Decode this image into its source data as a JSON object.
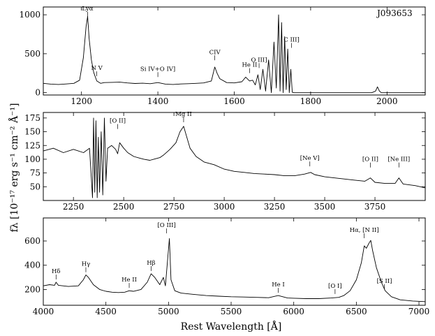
{
  "chart_data": {
    "type": "line",
    "object_name": "J093653",
    "xlabel": "Rest Wavelength [Å]",
    "ylabel": "fλ [10⁻¹⁷ erg s⁻¹ cm⁻² Å⁻¹]",
    "grid": false,
    "panels": [
      {
        "xlim": [
          1100,
          2100
        ],
        "ylim": [
          -30,
          1100
        ],
        "xticks": [
          1200,
          1400,
          1600,
          1800,
          2000
        ],
        "yticks": [
          0,
          500,
          1000
        ],
        "lines": [
          {
            "label": "Lyα",
            "x": 1216,
            "peak": 980
          },
          {
            "label": "N V",
            "x": 1240,
            "peak": 175
          },
          {
            "label": "Si IV+O IV]",
            "x": 1400,
            "peak": 165
          },
          {
            "label": "CIV",
            "x": 1549,
            "peak": 380
          },
          {
            "label": "He II",
            "x": 1640,
            "peak": 215
          },
          {
            "label": "O III]",
            "x": 1665,
            "peak": 280
          },
          {
            "label": "C III]",
            "x": 1750,
            "peak": 540
          }
        ],
        "spectrum": [
          [
            1100,
            120
          ],
          [
            1120,
            110
          ],
          [
            1140,
            105
          ],
          [
            1160,
            112
          ],
          [
            1180,
            120
          ],
          [
            1195,
            160
          ],
          [
            1205,
            450
          ],
          [
            1212,
            850
          ],
          [
            1216,
            980
          ],
          [
            1220,
            700
          ],
          [
            1226,
            420
          ],
          [
            1232,
            260
          ],
          [
            1240,
            150
          ],
          [
            1250,
            120
          ],
          [
            1260,
            130
          ],
          [
            1280,
            132
          ],
          [
            1300,
            135
          ],
          [
            1320,
            125
          ],
          [
            1340,
            118
          ],
          [
            1360,
            122
          ],
          [
            1380,
            115
          ],
          [
            1400,
            130
          ],
          [
            1420,
            110
          ],
          [
            1440,
            105
          ],
          [
            1460,
            112
          ],
          [
            1480,
            115
          ],
          [
            1500,
            120
          ],
          [
            1520,
            125
          ],
          [
            1540,
            150
          ],
          [
            1549,
            330
          ],
          [
            1555,
            250
          ],
          [
            1562,
            180
          ],
          [
            1580,
            130
          ],
          [
            1600,
            125
          ],
          [
            1620,
            140
          ],
          [
            1630,
            200
          ],
          [
            1640,
            150
          ],
          [
            1648,
            160
          ],
          [
            1655,
            100
          ],
          [
            1662,
            230
          ],
          [
            1668,
            40
          ],
          [
            1675,
            300
          ],
          [
            1682,
            20
          ],
          [
            1690,
            420
          ],
          [
            1697,
            0
          ],
          [
            1704,
            650
          ],
          [
            1710,
            60
          ],
          [
            1716,
            1000
          ],
          [
            1720,
            20
          ],
          [
            1724,
            900
          ],
          [
            1728,
            0
          ],
          [
            1732,
            720
          ],
          [
            1736,
            40
          ],
          [
            1740,
            560
          ],
          [
            1744,
            0
          ],
          [
            1748,
            300
          ],
          [
            1752,
            5
          ],
          [
            1756,
            0
          ],
          [
            1800,
            0
          ],
          [
            1900,
            0
          ],
          [
            1960,
            0
          ],
          [
            1970,
            20
          ],
          [
            1975,
            75
          ],
          [
            1980,
            20
          ],
          [
            1985,
            0
          ],
          [
            2100,
            0
          ]
        ]
      },
      {
        "xlim": [
          2100,
          4000
        ],
        "ylim": [
          25,
          185
        ],
        "xticks": [
          2250,
          2500,
          2750,
          3000,
          3250,
          3500,
          3750
        ],
        "yticks": [
          50,
          75,
          100,
          125,
          150,
          175
        ],
        "lines": [
          {
            "label": "[O II]",
            "x": 2470,
            "peak": 150
          },
          {
            "label": "Mg II",
            "x": 2798,
            "peak": 168
          },
          {
            "label": "[Ne V]",
            "x": 3426,
            "peak": 82
          },
          {
            "label": "[O II]",
            "x": 3727,
            "peak": 80
          },
          {
            "label": "[Ne III]",
            "x": 3869,
            "peak": 80
          }
        ],
        "spectrum": [
          [
            2100,
            115
          ],
          [
            2150,
            120
          ],
          [
            2200,
            112
          ],
          [
            2250,
            118
          ],
          [
            2300,
            112
          ],
          [
            2330,
            120
          ],
          [
            2345,
            30
          ],
          [
            2350,
            175
          ],
          [
            2356,
            40
          ],
          [
            2362,
            170
          ],
          [
            2368,
            30
          ],
          [
            2374,
            140
          ],
          [
            2380,
            40
          ],
          [
            2388,
            150
          ],
          [
            2396,
            35
          ],
          [
            2404,
            175
          ],
          [
            2412,
            60
          ],
          [
            2420,
            120
          ],
          [
            2440,
            125
          ],
          [
            2460,
            118
          ],
          [
            2470,
            110
          ],
          [
            2480,
            130
          ],
          [
            2500,
            120
          ],
          [
            2520,
            112
          ],
          [
            2550,
            105
          ],
          [
            2580,
            102
          ],
          [
            2600,
            100
          ],
          [
            2630,
            98
          ],
          [
            2650,
            100
          ],
          [
            2680,
            103
          ],
          [
            2700,
            108
          ],
          [
            2730,
            118
          ],
          [
            2760,
            130
          ],
          [
            2780,
            150
          ],
          [
            2798,
            160
          ],
          [
            2810,
            145
          ],
          [
            2830,
            120
          ],
          [
            2860,
            105
          ],
          [
            2900,
            95
          ],
          [
            2950,
            90
          ],
          [
            3000,
            82
          ],
          [
            3050,
            78
          ],
          [
            3100,
            76
          ],
          [
            3150,
            74
          ],
          [
            3200,
            73
          ],
          [
            3250,
            72
          ],
          [
            3300,
            70
          ],
          [
            3350,
            70
          ],
          [
            3400,
            73
          ],
          [
            3430,
            76
          ],
          [
            3450,
            72
          ],
          [
            3500,
            68
          ],
          [
            3550,
            66
          ],
          [
            3600,
            64
          ],
          [
            3650,
            62
          ],
          [
            3700,
            60
          ],
          [
            3727,
            66
          ],
          [
            3750,
            58
          ],
          [
            3800,
            56
          ],
          [
            3850,
            56
          ],
          [
            3869,
            66
          ],
          [
            3890,
            55
          ],
          [
            3950,
            52
          ],
          [
            4000,
            48
          ]
        ]
      },
      {
        "xlim": [
          4000,
          7050
        ],
        "ylim": [
          70,
          790
        ],
        "xticks": [
          4000,
          4500,
          5000,
          5500,
          6000,
          6500,
          7000
        ],
        "yticks": [
          200,
          400,
          600
        ],
        "lines": [
          {
            "label": "Hδ",
            "x": 4102,
            "peak": 260
          },
          {
            "label": "Hγ",
            "x": 4340,
            "peak": 320
          },
          {
            "label": "He II",
            "x": 4686,
            "peak": 190
          },
          {
            "label": "Hβ",
            "x": 4861,
            "peak": 330
          },
          {
            "label": "[O III]",
            "x": 4985,
            "peak": 640
          },
          {
            "label": "He I",
            "x": 5876,
            "peak": 150
          },
          {
            "label": "[O I]",
            "x": 6330,
            "peak": 140
          },
          {
            "label": "Hα, [N II]",
            "x": 6563,
            "peak": 600
          },
          {
            "label": "[S II]",
            "x": 6724,
            "peak": 180
          }
        ],
        "spectrum": [
          [
            4000,
            230
          ],
          [
            4050,
            240
          ],
          [
            4090,
            235
          ],
          [
            4102,
            260
          ],
          [
            4120,
            235
          ],
          [
            4200,
            225
          ],
          [
            4280,
            230
          ],
          [
            4320,
            280
          ],
          [
            4340,
            320
          ],
          [
            4360,
            300
          ],
          [
            4400,
            240
          ],
          [
            4450,
            200
          ],
          [
            4500,
            185
          ],
          [
            4550,
            178
          ],
          [
            4600,
            175
          ],
          [
            4650,
            178
          ],
          [
            4686,
            190
          ],
          [
            4720,
            185
          ],
          [
            4780,
            200
          ],
          [
            4830,
            260
          ],
          [
            4861,
            330
          ],
          [
            4890,
            300
          ],
          [
            4930,
            240
          ],
          [
            4959,
            300
          ],
          [
            4975,
            230
          ],
          [
            5007,
            620
          ],
          [
            5020,
            280
          ],
          [
            5050,
            190
          ],
          [
            5100,
            170
          ],
          [
            5200,
            160
          ],
          [
            5300,
            150
          ],
          [
            5400,
            145
          ],
          [
            5500,
            140
          ],
          [
            5600,
            138
          ],
          [
            5700,
            135
          ],
          [
            5800,
            132
          ],
          [
            5876,
            150
          ],
          [
            5950,
            130
          ],
          [
            6000,
            128
          ],
          [
            6100,
            125
          ],
          [
            6200,
            125
          ],
          [
            6300,
            130
          ],
          [
            6360,
            135
          ],
          [
            6400,
            150
          ],
          [
            6450,
            190
          ],
          [
            6500,
            280
          ],
          [
            6540,
            420
          ],
          [
            6563,
            560
          ],
          [
            6580,
            540
          ],
          [
            6600,
            580
          ],
          [
            6615,
            605
          ],
          [
            6630,
            520
          ],
          [
            6660,
            380
          ],
          [
            6700,
            260
          ],
          [
            6730,
            190
          ],
          [
            6780,
            140
          ],
          [
            6850,
            115
          ],
          [
            6950,
            105
          ],
          [
            7050,
            100
          ]
        ]
      }
    ]
  }
}
